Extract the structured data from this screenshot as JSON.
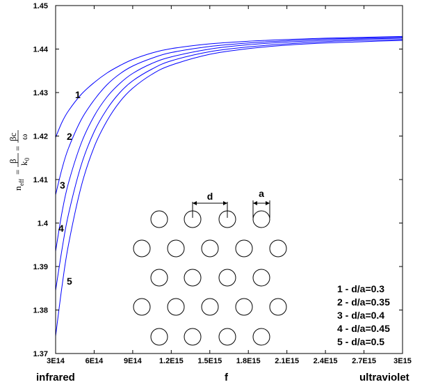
{
  "chart_data": {
    "type": "line",
    "title": "",
    "xlabel": "f",
    "x_left_label": "infrared",
    "x_right_label": "ultraviolet",
    "ylabel": {
      "n": "n",
      "n_sub": "eff",
      "eq1": "=",
      "beta": "β",
      "k": "k",
      "k_sub": "0",
      "eq2": "=",
      "betac": "βc",
      "omega": "ω"
    },
    "xlim": [
      300000000000000.0,
      3000000000000000.0
    ],
    "ylim": [
      1.37,
      1.45
    ],
    "x_ticks": [
      300000000000000.0,
      600000000000000.0,
      900000000000000.0,
      1200000000000000.0,
      1500000000000000.0,
      1800000000000000.0,
      2100000000000000.0,
      2400000000000000.0,
      2700000000000000.0,
      3000000000000000.0
    ],
    "x_tick_labels": [
      "3E14",
      "6E14",
      "9E14",
      "1.2E15",
      "1.5E15",
      "1.8E15",
      "2.1E15",
      "2.4E15",
      "2.7E15",
      "3E15"
    ],
    "y_ticks": [
      1.37,
      1.38,
      1.39,
      1.4,
      1.41,
      1.42,
      1.43,
      1.44,
      1.45
    ],
    "y_tick_labels": [
      "1.37",
      "1.38",
      "1.39",
      "1.4",
      "1.41",
      "1.42",
      "1.43",
      "1.44",
      "1.45"
    ],
    "grid": false,
    "series": [
      {
        "name": "1",
        "legend": "1 - d/a=0.3",
        "color": "#0000ff",
        "points": [
          [
            300000000000000.0,
            1.4197
          ],
          [
            350000000000000.0,
            1.4232
          ],
          [
            400000000000000.0,
            1.4258
          ],
          [
            500000000000000.0,
            1.4296
          ],
          [
            600000000000000.0,
            1.4323
          ],
          [
            700000000000000.0,
            1.4345
          ],
          [
            800000000000000.0,
            1.4362
          ],
          [
            900000000000000.0,
            1.4376
          ],
          [
            1050000000000000.0,
            1.4391
          ],
          [
            1200000000000000.0,
            1.4401
          ],
          [
            1500000000000000.0,
            1.4412
          ],
          [
            1800000000000000.0,
            1.4418
          ],
          [
            2100000000000000.0,
            1.4422
          ],
          [
            2400000000000000.0,
            1.4425
          ],
          [
            2700000000000000.0,
            1.4427
          ],
          [
            3000000000000000.0,
            1.4429
          ]
        ]
      },
      {
        "name": "2",
        "legend": "2 - d/a=0.35",
        "color": "#0000ff",
        "points": [
          [
            300000000000000.0,
            1.4065
          ],
          [
            350000000000000.0,
            1.4125
          ],
          [
            400000000000000.0,
            1.4172
          ],
          [
            500000000000000.0,
            1.4238
          ],
          [
            600000000000000.0,
            1.4283
          ],
          [
            700000000000000.0,
            1.4318
          ],
          [
            800000000000000.0,
            1.4343
          ],
          [
            900000000000000.0,
            1.4361
          ],
          [
            1050000000000000.0,
            1.4379
          ],
          [
            1200000000000000.0,
            1.4392
          ],
          [
            1500000000000000.0,
            1.4406
          ],
          [
            1800000000000000.0,
            1.4414
          ],
          [
            2100000000000000.0,
            1.4419
          ],
          [
            2400000000000000.0,
            1.4423
          ],
          [
            2700000000000000.0,
            1.4425
          ],
          [
            3000000000000000.0,
            1.4427
          ]
        ]
      },
      {
        "name": "3",
        "legend": "3 - d/a=0.4",
        "color": "#0000ff",
        "points": [
          [
            300000000000000.0,
            1.3935
          ],
          [
            350000000000000.0,
            1.4025
          ],
          [
            400000000000000.0,
            1.4092
          ],
          [
            500000000000000.0,
            1.4184
          ],
          [
            600000000000000.0,
            1.4246
          ],
          [
            700000000000000.0,
            1.429
          ],
          [
            800000000000000.0,
            1.4321
          ],
          [
            900000000000000.0,
            1.4344
          ],
          [
            1050000000000000.0,
            1.4367
          ],
          [
            1200000000000000.0,
            1.4382
          ],
          [
            1500000000000000.0,
            1.44
          ],
          [
            1800000000000000.0,
            1.441
          ],
          [
            2100000000000000.0,
            1.4416
          ],
          [
            2400000000000000.0,
            1.442
          ],
          [
            2700000000000000.0,
            1.4423
          ],
          [
            3000000000000000.0,
            1.4425
          ]
        ]
      },
      {
        "name": "4",
        "legend": "4 - d/a=0.45",
        "color": "#0000ff",
        "points": [
          [
            300000000000000.0,
            1.3845
          ],
          [
            350000000000000.0,
            1.394
          ],
          [
            400000000000000.0,
            1.402
          ],
          [
            500000000000000.0,
            1.4134
          ],
          [
            600000000000000.0,
            1.421
          ],
          [
            700000000000000.0,
            1.4262
          ],
          [
            800000000000000.0,
            1.43
          ],
          [
            900000000000000.0,
            1.4327
          ],
          [
            1050000000000000.0,
            1.4354
          ],
          [
            1200000000000000.0,
            1.4373
          ],
          [
            1500000000000000.0,
            1.4394
          ],
          [
            1800000000000000.0,
            1.4405
          ],
          [
            2100000000000000.0,
            1.4412
          ],
          [
            2400000000000000.0,
            1.4417
          ],
          [
            2700000000000000.0,
            1.442
          ],
          [
            3000000000000000.0,
            1.4422
          ]
        ]
      },
      {
        "name": "5",
        "legend": "5 - d/a=0.5",
        "color": "#0000ff",
        "points": [
          [
            300000000000000.0,
            1.374
          ],
          [
            350000000000000.0,
            1.3855
          ],
          [
            400000000000000.0,
            1.395
          ],
          [
            500000000000000.0,
            1.4085
          ],
          [
            600000000000000.0,
            1.4175
          ],
          [
            700000000000000.0,
            1.4235
          ],
          [
            800000000000000.0,
            1.4279
          ],
          [
            900000000000000.0,
            1.431
          ],
          [
            1050000000000000.0,
            1.4342
          ],
          [
            1200000000000000.0,
            1.4363
          ],
          [
            1500000000000000.0,
            1.4388
          ],
          [
            1800000000000000.0,
            1.4401
          ],
          [
            2100000000000000.0,
            1.4409
          ],
          [
            2400000000000000.0,
            1.4414
          ],
          [
            2700000000000000.0,
            1.4417
          ],
          [
            3000000000000000.0,
            1.442
          ]
        ]
      }
    ],
    "inset": {
      "label_d": "d",
      "label_a": "a",
      "rows": [
        4,
        5,
        4,
        5,
        4
      ]
    },
    "colors": {
      "curve": "#0000ff",
      "axis": "#000000",
      "background": "#ffffff"
    }
  }
}
